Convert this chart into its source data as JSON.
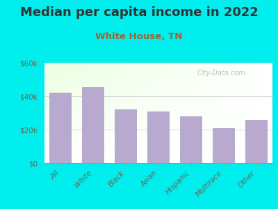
{
  "title": "Median per capita income in 2022",
  "subtitle": "White House, TN",
  "categories": [
    "All",
    "White",
    "Black",
    "Asian",
    "Hispanic",
    "Multirace",
    "Other"
  ],
  "values": [
    42000,
    45500,
    32000,
    31000,
    28000,
    21000,
    26000
  ],
  "bar_color": "#b8a9cf",
  "background_color": "#00EEEE",
  "title_color": "#333333",
  "subtitle_color": "#996633",
  "tick_label_color": "#666655",
  "ylim": [
    0,
    60000
  ],
  "yticks": [
    0,
    20000,
    40000,
    60000
  ],
  "ytick_labels": [
    "$0",
    "$20k",
    "$40k",
    "$60k"
  ],
  "title_fontsize": 13,
  "subtitle_fontsize": 9.5,
  "watermark": "City-Data.com"
}
